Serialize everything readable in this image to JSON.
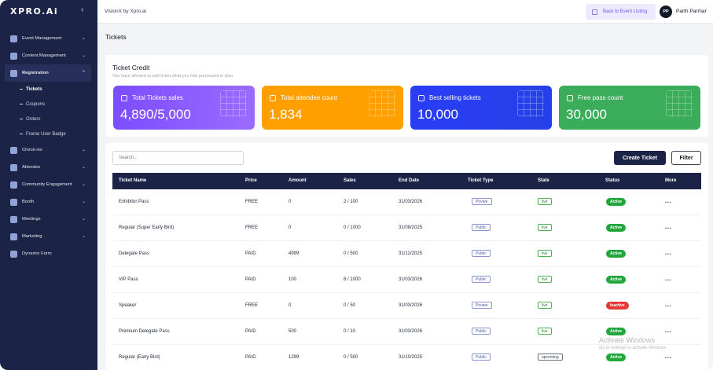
{
  "sidebar": {
    "logo": "XPRO.Ai",
    "collapse_icon": "chevron-left-icon",
    "items": [
      {
        "label": "Event Management",
        "icon": "building-icon"
      },
      {
        "label": "Content Management",
        "icon": "grid-icon"
      },
      {
        "label": "Registration",
        "icon": "id-card-icon"
      },
      {
        "label": "Check-ins",
        "icon": "check-shield-icon"
      },
      {
        "label": "Attendee",
        "icon": "person-icon"
      },
      {
        "label": "Community Engagement",
        "icon": "network-icon"
      },
      {
        "label": "Booth",
        "icon": "store-icon"
      },
      {
        "label": "Meetings",
        "icon": "handshake-icon"
      },
      {
        "label": "Marketing",
        "icon": "megaphone-icon"
      },
      {
        "label": "Dynamic Form",
        "icon": "form-icon"
      }
    ],
    "registration_sub": [
      {
        "label": "Tickets",
        "active": true
      },
      {
        "label": "Coupons",
        "active": false
      },
      {
        "label": "Orders",
        "active": false
      },
      {
        "label": "Frame User Badge",
        "active": false
      }
    ]
  },
  "topbar": {
    "app_name": "VisionX by Xpro.ai",
    "back_button": "Back to Event Listing",
    "avatar_initials": "PP",
    "user_name": "Parth Parmar"
  },
  "page": {
    "title": "Tickets"
  },
  "credit": {
    "title": "Ticket Credit",
    "subtitle": "You have allowed to add ticket what you had purchased in plan",
    "stats": [
      {
        "label": "Total Tickets sales",
        "value": "4,890/5,000",
        "color": "#7c4dff"
      },
      {
        "label": "Total attendee count",
        "value": "1,834",
        "color": "#ffa000"
      },
      {
        "label": "Best selling tickets",
        "value": "10,000",
        "color": "#2a3df5"
      },
      {
        "label": "Free pass count",
        "value": "30,000",
        "color": "#3aac5a"
      }
    ]
  },
  "toolbar": {
    "search_placeholder": "Search...",
    "create_label": "Create Ticket",
    "filter_label": "Filter"
  },
  "table": {
    "headers": [
      "Ticket Name",
      "Price",
      "Amount",
      "Sales",
      "End Date",
      "Ticket Type",
      "State",
      "Status",
      "More"
    ],
    "rows": [
      {
        "name": "Exhibitor Pass",
        "price": "FREE",
        "amount": "0",
        "sales": "2 / 100",
        "end_date": "31/03/2026",
        "type": "Private",
        "state": "live",
        "status": "Active",
        "more": "..."
      },
      {
        "name": "Regular (Super Early Bird)",
        "price": "FREE",
        "amount": "0",
        "sales": "0 / 1000",
        "end_date": "31/08/2025",
        "type": "Public",
        "state": "live",
        "status": "Active",
        "more": "..."
      },
      {
        "name": "Delegate Pass",
        "price": "PAID",
        "amount": "4999",
        "sales": "0 / 500",
        "end_date": "31/12/2025",
        "type": "Public",
        "state": "live",
        "status": "Active",
        "more": "..."
      },
      {
        "name": "VIP Pass",
        "price": "PAID",
        "amount": "100",
        "sales": "8 / 1000",
        "end_date": "31/03/2026",
        "type": "Public",
        "state": "live",
        "status": "Active",
        "more": "..."
      },
      {
        "name": "Speaker",
        "price": "FREE",
        "amount": "0",
        "sales": "0 / 50",
        "end_date": "31/03/2026",
        "type": "Private",
        "state": "live",
        "status": "Inactive",
        "more": "..."
      },
      {
        "name": "Premium Delegate Pass",
        "price": "PAID",
        "amount": "500",
        "sales": "0 / 10",
        "end_date": "31/03/2026",
        "type": "Public",
        "state": "live",
        "status": "Active",
        "more": "..."
      },
      {
        "name": "Regular (Early Bird)",
        "price": "PAID",
        "amount": "1299",
        "sales": "0 / 500",
        "end_date": "31/10/2025",
        "type": "Public",
        "state": "upcoming",
        "status": "Active",
        "more": "..."
      }
    ]
  },
  "watermark": {
    "line1": "Activate Windows",
    "line2": "Go to Settings to activate Windows."
  }
}
